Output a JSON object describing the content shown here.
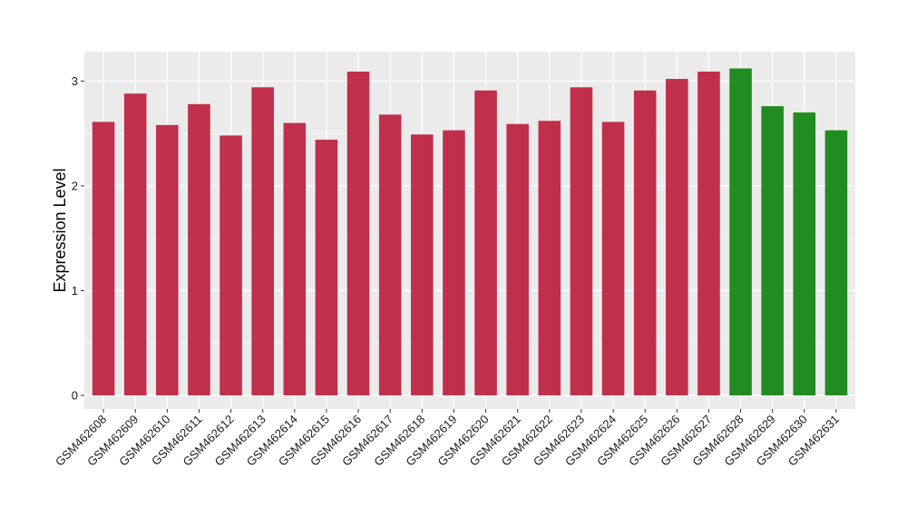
{
  "chart_data": {
    "type": "bar",
    "title": "",
    "xlabel": "",
    "ylabel": "Expression Level",
    "ylim": [
      -0.13,
      3.28
    ],
    "yticks": [
      0,
      1,
      2,
      3
    ],
    "categories": [
      "GSM462608",
      "GSM462609",
      "GSM462610",
      "GSM462611",
      "GSM462612",
      "GSM462613",
      "GSM462614",
      "GSM462615",
      "GSM462616",
      "GSM462617",
      "GSM462618",
      "GSM462619",
      "GSM462620",
      "GSM462621",
      "GSM462622",
      "GSM462623",
      "GSM462624",
      "GSM462625",
      "GSM462626",
      "GSM462627",
      "GSM462628",
      "GSM462629",
      "GSM462630",
      "GSM462631"
    ],
    "values": [
      2.61,
      2.88,
      2.58,
      2.78,
      2.48,
      2.94,
      2.6,
      2.44,
      3.09,
      2.68,
      2.49,
      2.53,
      2.91,
      2.59,
      2.62,
      2.94,
      2.61,
      2.91,
      3.02,
      3.09,
      3.12,
      2.76,
      2.7,
      2.53
    ],
    "bar_colors": [
      "#c0304a",
      "#c0304a",
      "#c0304a",
      "#c0304a",
      "#c0304a",
      "#c0304a",
      "#c0304a",
      "#c0304a",
      "#c0304a",
      "#c0304a",
      "#c0304a",
      "#c0304a",
      "#c0304a",
      "#c0304a",
      "#c0304a",
      "#c0304a",
      "#c0304a",
      "#c0304a",
      "#c0304a",
      "#c0304a",
      "#228b22",
      "#228b22",
      "#228b22",
      "#228b22"
    ],
    "panel_background": "#ebebeb",
    "grid": true,
    "legend": "none"
  }
}
